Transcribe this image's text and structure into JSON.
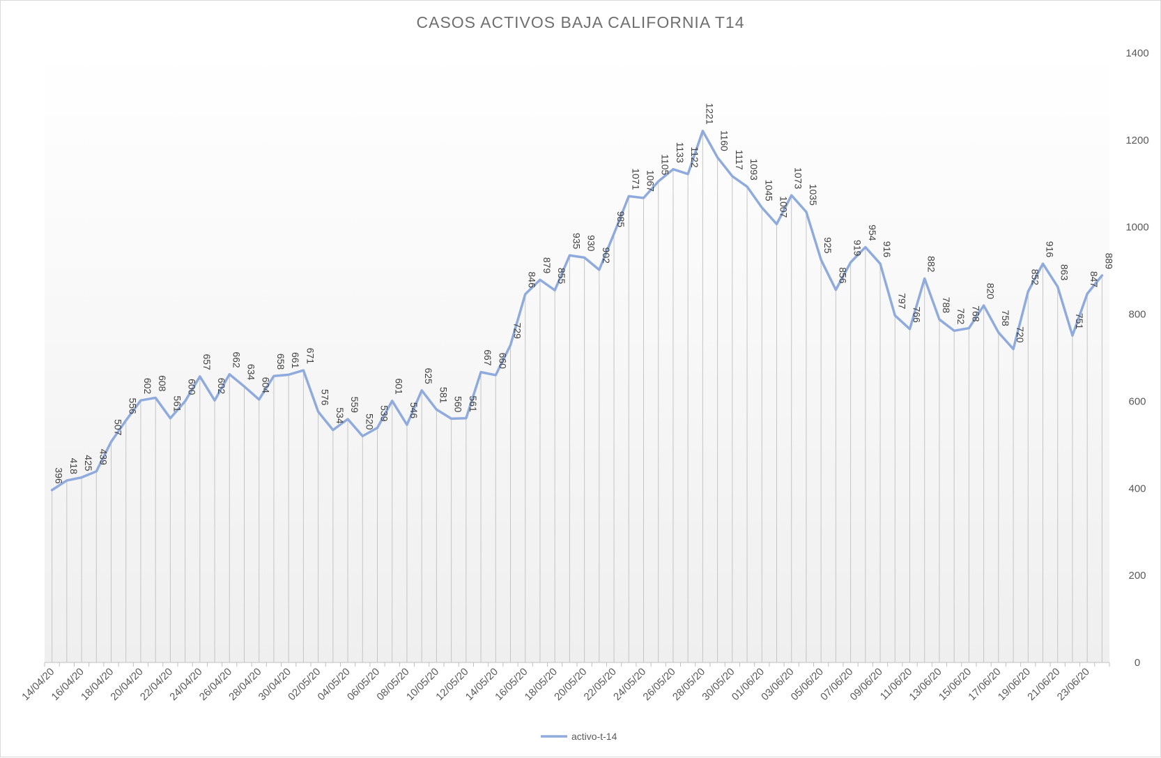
{
  "chart_data": {
    "type": "line",
    "title": "CASOS ACTIVOS BAJA CALIFORNIA T14",
    "xlabel": "",
    "ylabel": "",
    "ylim": [
      0,
      1400
    ],
    "y_ticks": [
      0,
      200,
      400,
      600,
      800,
      1000,
      1200,
      1400
    ],
    "y_axis_side": "right",
    "grid": "vertical drop lines",
    "legend_position": "bottom",
    "line_color": "#8faadc",
    "x": [
      "14/04/20",
      "15/04/20",
      "16/04/20",
      "17/04/20",
      "18/04/20",
      "19/04/20",
      "20/04/20",
      "21/04/20",
      "22/04/20",
      "23/04/20",
      "24/04/20",
      "25/04/20",
      "26/04/20",
      "27/04/20",
      "28/04/20",
      "29/04/20",
      "30/04/20",
      "01/05/20",
      "02/05/20",
      "03/05/20",
      "04/05/20",
      "05/05/20",
      "06/05/20",
      "07/05/20",
      "08/05/20",
      "09/05/20",
      "10/05/20",
      "11/05/20",
      "12/05/20",
      "13/05/20",
      "14/05/20",
      "15/05/20",
      "16/05/20",
      "17/05/20",
      "18/05/20",
      "19/05/20",
      "20/05/20",
      "21/05/20",
      "22/05/20",
      "23/05/20",
      "24/05/20",
      "25/05/20",
      "26/05/20",
      "27/05/20",
      "28/05/20",
      "29/05/20",
      "30/05/20",
      "31/05/20",
      "01/06/20",
      "02/06/20",
      "03/06/20",
      "04/06/20",
      "05/06/20",
      "06/06/20",
      "07/06/20",
      "08/06/20",
      "09/06/20",
      "10/06/20",
      "11/06/20",
      "12/06/20",
      "13/06/20",
      "14/06/20",
      "15/06/20",
      "16/06/20",
      "17/06/20",
      "18/06/20",
      "19/06/20",
      "20/06/20",
      "21/06/20",
      "22/06/20",
      "23/06/20",
      "24/06/20"
    ],
    "x_tick_labels": [
      "14/04/20",
      "16/04/20",
      "18/04/20",
      "20/04/20",
      "22/04/20",
      "24/04/20",
      "26/04/20",
      "28/04/20",
      "30/04/20",
      "02/05/20",
      "04/05/20",
      "06/05/20",
      "08/05/20",
      "10/05/20",
      "12/05/20",
      "14/05/20",
      "16/05/20",
      "18/05/20",
      "20/05/20",
      "22/05/20",
      "24/05/20",
      "26/05/20",
      "28/05/20",
      "30/05/20",
      "01/06/20",
      "03/06/20",
      "05/06/20",
      "07/06/20",
      "09/06/20",
      "11/06/20",
      "13/06/20",
      "15/06/20",
      "17/06/20",
      "19/06/20",
      "21/06/20",
      "23/06/20"
    ],
    "series": [
      {
        "name": "activo-t-14",
        "values": [
          396,
          418,
          425,
          439,
          507,
          556,
          602,
          608,
          561,
          600,
          657,
          602,
          662,
          634,
          604,
          658,
          661,
          671,
          576,
          534,
          559,
          520,
          539,
          601,
          546,
          625,
          581,
          560,
          561,
          667,
          660,
          729,
          846,
          879,
          855,
          935,
          930,
          902,
          985,
          1071,
          1067,
          1105,
          1133,
          1122,
          1221,
          1160,
          1117,
          1093,
          1045,
          1007,
          1073,
          1035,
          925,
          856,
          919,
          954,
          916,
          797,
          766,
          882,
          788,
          762,
          768,
          820,
          758,
          720,
          852,
          916,
          863,
          751,
          847,
          889
        ]
      }
    ]
  }
}
